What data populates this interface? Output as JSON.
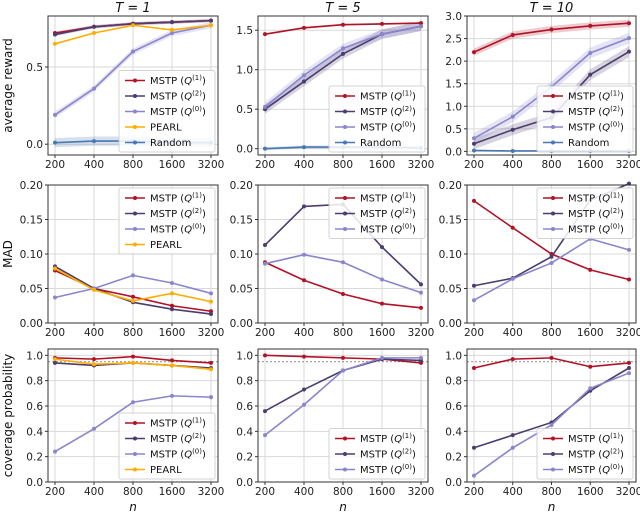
{
  "colors": {
    "Q1": "#b11226",
    "Q2": "#4b3d6e",
    "Q0": "#8a85cc",
    "PEARL": "#ffae00",
    "Random": "#4a78b2",
    "grid": "#d9d9d9",
    "ref": "#999999"
  },
  "series_labels": {
    "Q1": {
      "prefix": "MSTP (",
      "var": "Q",
      "sup": "(1)",
      "suffix": ")"
    },
    "Q2": {
      "prefix": "MSTP (",
      "var": "Q",
      "sup": "(2)",
      "suffix": ")"
    },
    "Q0": {
      "prefix": "MSTP (",
      "var": "Q",
      "sup": "(0)",
      "suffix": ")"
    },
    "PEARL": {
      "prefix": "PEARL",
      "var": "",
      "sup": "",
      "suffix": ""
    },
    "Random": {
      "prefix": "Random",
      "var": "",
      "sup": "",
      "suffix": ""
    }
  },
  "xlabel": "n",
  "chart_data": [
    {
      "type": "line",
      "title": "T = 1",
      "ylabel": "average reward",
      "categories": [
        "200",
        "400",
        "800",
        "1600",
        "3200"
      ],
      "ylim": [
        -0.07,
        0.83
      ],
      "yticks": [
        "0.0",
        "0.5"
      ],
      "grid": true,
      "legend": "lower-right",
      "shaded_ci": true,
      "series": [
        {
          "key": "Q1",
          "values": [
            0.72,
            0.76,
            0.78,
            0.79,
            0.8
          ],
          "ci": 0.01
        },
        {
          "key": "Q2",
          "values": [
            0.71,
            0.76,
            0.78,
            0.79,
            0.8
          ],
          "ci": 0.01
        },
        {
          "key": "Q0",
          "values": [
            0.19,
            0.36,
            0.6,
            0.72,
            0.77
          ],
          "ci": 0.02
        },
        {
          "key": "PEARL",
          "values": [
            0.65,
            0.72,
            0.77,
            0.74,
            0.77
          ],
          "ci": 0
        },
        {
          "key": "Random",
          "values": [
            0.01,
            0.02,
            0.02,
            0.01,
            0.01
          ],
          "ci": 0.03
        }
      ]
    },
    {
      "type": "line",
      "title": "T = 5",
      "ylabel": "",
      "categories": [
        "200",
        "400",
        "800",
        "1600",
        "3200"
      ],
      "ylim": [
        -0.08,
        1.68
      ],
      "yticks": [
        "0.0",
        "0.5",
        "1.0",
        "1.5"
      ],
      "grid": true,
      "legend": "lower-right",
      "shaded_ci": true,
      "series": [
        {
          "key": "Q1",
          "values": [
            1.45,
            1.53,
            1.57,
            1.58,
            1.59
          ],
          "ci": 0.01
        },
        {
          "key": "Q2",
          "values": [
            0.5,
            0.85,
            1.2,
            1.45,
            1.55
          ],
          "ci": 0.06
        },
        {
          "key": "Q0",
          "values": [
            0.53,
            0.93,
            1.27,
            1.45,
            1.55
          ],
          "ci": 0.06
        },
        {
          "key": "Random",
          "values": [
            0.0,
            0.02,
            0.02,
            0.02,
            0.01
          ],
          "ci": 0.02
        }
      ]
    },
    {
      "type": "line",
      "title": "T = 10",
      "ylabel": "",
      "categories": [
        "200",
        "400",
        "800",
        "1600",
        "3200"
      ],
      "ylim": [
        -0.08,
        3.0
      ],
      "yticks": [
        "0.0",
        "0.5",
        "1.0",
        "1.5",
        "2.0",
        "2.5",
        "3.0"
      ],
      "grid": true,
      "legend": "lower-right",
      "shaded_ci": true,
      "series": [
        {
          "key": "Q1",
          "values": [
            2.2,
            2.58,
            2.7,
            2.78,
            2.84
          ],
          "ci": 0.08
        },
        {
          "key": "Q2",
          "values": [
            0.17,
            0.48,
            0.75,
            1.7,
            2.21
          ],
          "ci": 0.12
        },
        {
          "key": "Q0",
          "values": [
            0.29,
            0.77,
            1.43,
            2.18,
            2.51
          ],
          "ci": 0.12
        },
        {
          "key": "Random",
          "values": [
            0.02,
            0.01,
            0.01,
            0.01,
            0.01
          ],
          "ci": 0.01
        }
      ]
    },
    {
      "type": "line",
      "title": "",
      "ylabel": "MAD",
      "categories": [
        "200",
        "400",
        "800",
        "1600",
        "3200"
      ],
      "ylim": [
        0,
        0.2
      ],
      "yticks": [
        "0.00",
        "0.05",
        "0.10",
        "0.15",
        "0.20"
      ],
      "grid": true,
      "legend": "upper-right",
      "series": [
        {
          "key": "Q1",
          "values": [
            0.076,
            0.05,
            0.038,
            0.025,
            0.017
          ]
        },
        {
          "key": "Q2",
          "values": [
            0.082,
            0.05,
            0.03,
            0.02,
            0.013
          ]
        },
        {
          "key": "Q0",
          "values": [
            0.037,
            0.05,
            0.069,
            0.058,
            0.043
          ]
        },
        {
          "key": "PEARL",
          "values": [
            0.079,
            0.048,
            0.032,
            0.043,
            0.031
          ]
        }
      ]
    },
    {
      "type": "line",
      "title": "",
      "ylabel": "",
      "categories": [
        "200",
        "400",
        "800",
        "1600",
        "3200"
      ],
      "ylim": [
        0,
        0.2
      ],
      "yticks": [
        "0.00",
        "0.05",
        "0.10",
        "0.15",
        "0.20"
      ],
      "grid": true,
      "legend": "upper-right",
      "series": [
        {
          "key": "Q1",
          "values": [
            0.088,
            0.062,
            0.042,
            0.028,
            0.022
          ]
        },
        {
          "key": "Q2",
          "values": [
            0.113,
            0.169,
            0.172,
            0.11,
            0.056
          ]
        },
        {
          "key": "Q0",
          "values": [
            0.086,
            0.099,
            0.088,
            0.063,
            0.044
          ]
        }
      ]
    },
    {
      "type": "line",
      "title": "",
      "ylabel": "",
      "categories": [
        "200",
        "400",
        "800",
        "1600",
        "3200"
      ],
      "ylim": [
        0,
        0.2
      ],
      "yticks": [
        "0.00",
        "0.05",
        "0.10",
        "0.15",
        "0.20"
      ],
      "grid": true,
      "legend": "upper-right",
      "series": [
        {
          "key": "Q1",
          "values": [
            0.177,
            0.138,
            0.1,
            0.077,
            0.063
          ]
        },
        {
          "key": "Q2",
          "values": [
            0.054,
            0.065,
            0.096,
            0.178,
            0.202
          ]
        },
        {
          "key": "Q0",
          "values": [
            0.033,
            0.064,
            0.087,
            0.122,
            0.106
          ]
        }
      ]
    },
    {
      "type": "line",
      "title": "",
      "ylabel": "coverage probability",
      "categories": [
        "200",
        "400",
        "800",
        "1600",
        "3200"
      ],
      "ylim": [
        0,
        1.05
      ],
      "yticks": [
        "0.0",
        "0.2",
        "0.4",
        "0.6",
        "0.8",
        "1.0"
      ],
      "grid": true,
      "legend": "lower-right",
      "reference_line": 0.95,
      "series": [
        {
          "key": "Q1",
          "values": [
            0.98,
            0.97,
            0.99,
            0.96,
            0.94
          ]
        },
        {
          "key": "Q2",
          "values": [
            0.94,
            0.92,
            0.94,
            0.92,
            0.9
          ]
        },
        {
          "key": "Q0",
          "values": [
            0.24,
            0.42,
            0.63,
            0.68,
            0.67
          ]
        },
        {
          "key": "PEARL",
          "values": [
            0.97,
            0.93,
            0.94,
            0.92,
            0.89
          ]
        }
      ]
    },
    {
      "type": "line",
      "title": "",
      "ylabel": "",
      "categories": [
        "200",
        "400",
        "800",
        "1600",
        "3200"
      ],
      "ylim": [
        0,
        1.05
      ],
      "yticks": [
        "0.0",
        "0.2",
        "0.4",
        "0.6",
        "0.8",
        "1.0"
      ],
      "grid": true,
      "legend": "lower-right",
      "reference_line": 0.95,
      "series": [
        {
          "key": "Q1",
          "values": [
            1.0,
            0.99,
            0.98,
            0.97,
            0.94
          ]
        },
        {
          "key": "Q2",
          "values": [
            0.56,
            0.73,
            0.88,
            0.97,
            0.96
          ]
        },
        {
          "key": "Q0",
          "values": [
            0.37,
            0.61,
            0.88,
            0.98,
            0.98
          ]
        }
      ]
    },
    {
      "type": "line",
      "title": "",
      "ylabel": "",
      "categories": [
        "200",
        "400",
        "800",
        "1600",
        "3200"
      ],
      "ylim": [
        0,
        1.05
      ],
      "yticks": [
        "0.0",
        "0.2",
        "0.4",
        "0.6",
        "0.8",
        "1.0"
      ],
      "grid": true,
      "legend": "lower-right",
      "reference_line": 0.95,
      "series": [
        {
          "key": "Q1",
          "values": [
            0.9,
            0.97,
            0.98,
            0.91,
            0.94
          ]
        },
        {
          "key": "Q2",
          "values": [
            0.27,
            0.37,
            0.47,
            0.72,
            0.9
          ]
        },
        {
          "key": "Q0",
          "values": [
            0.05,
            0.27,
            0.45,
            0.74,
            0.86
          ]
        }
      ]
    }
  ]
}
